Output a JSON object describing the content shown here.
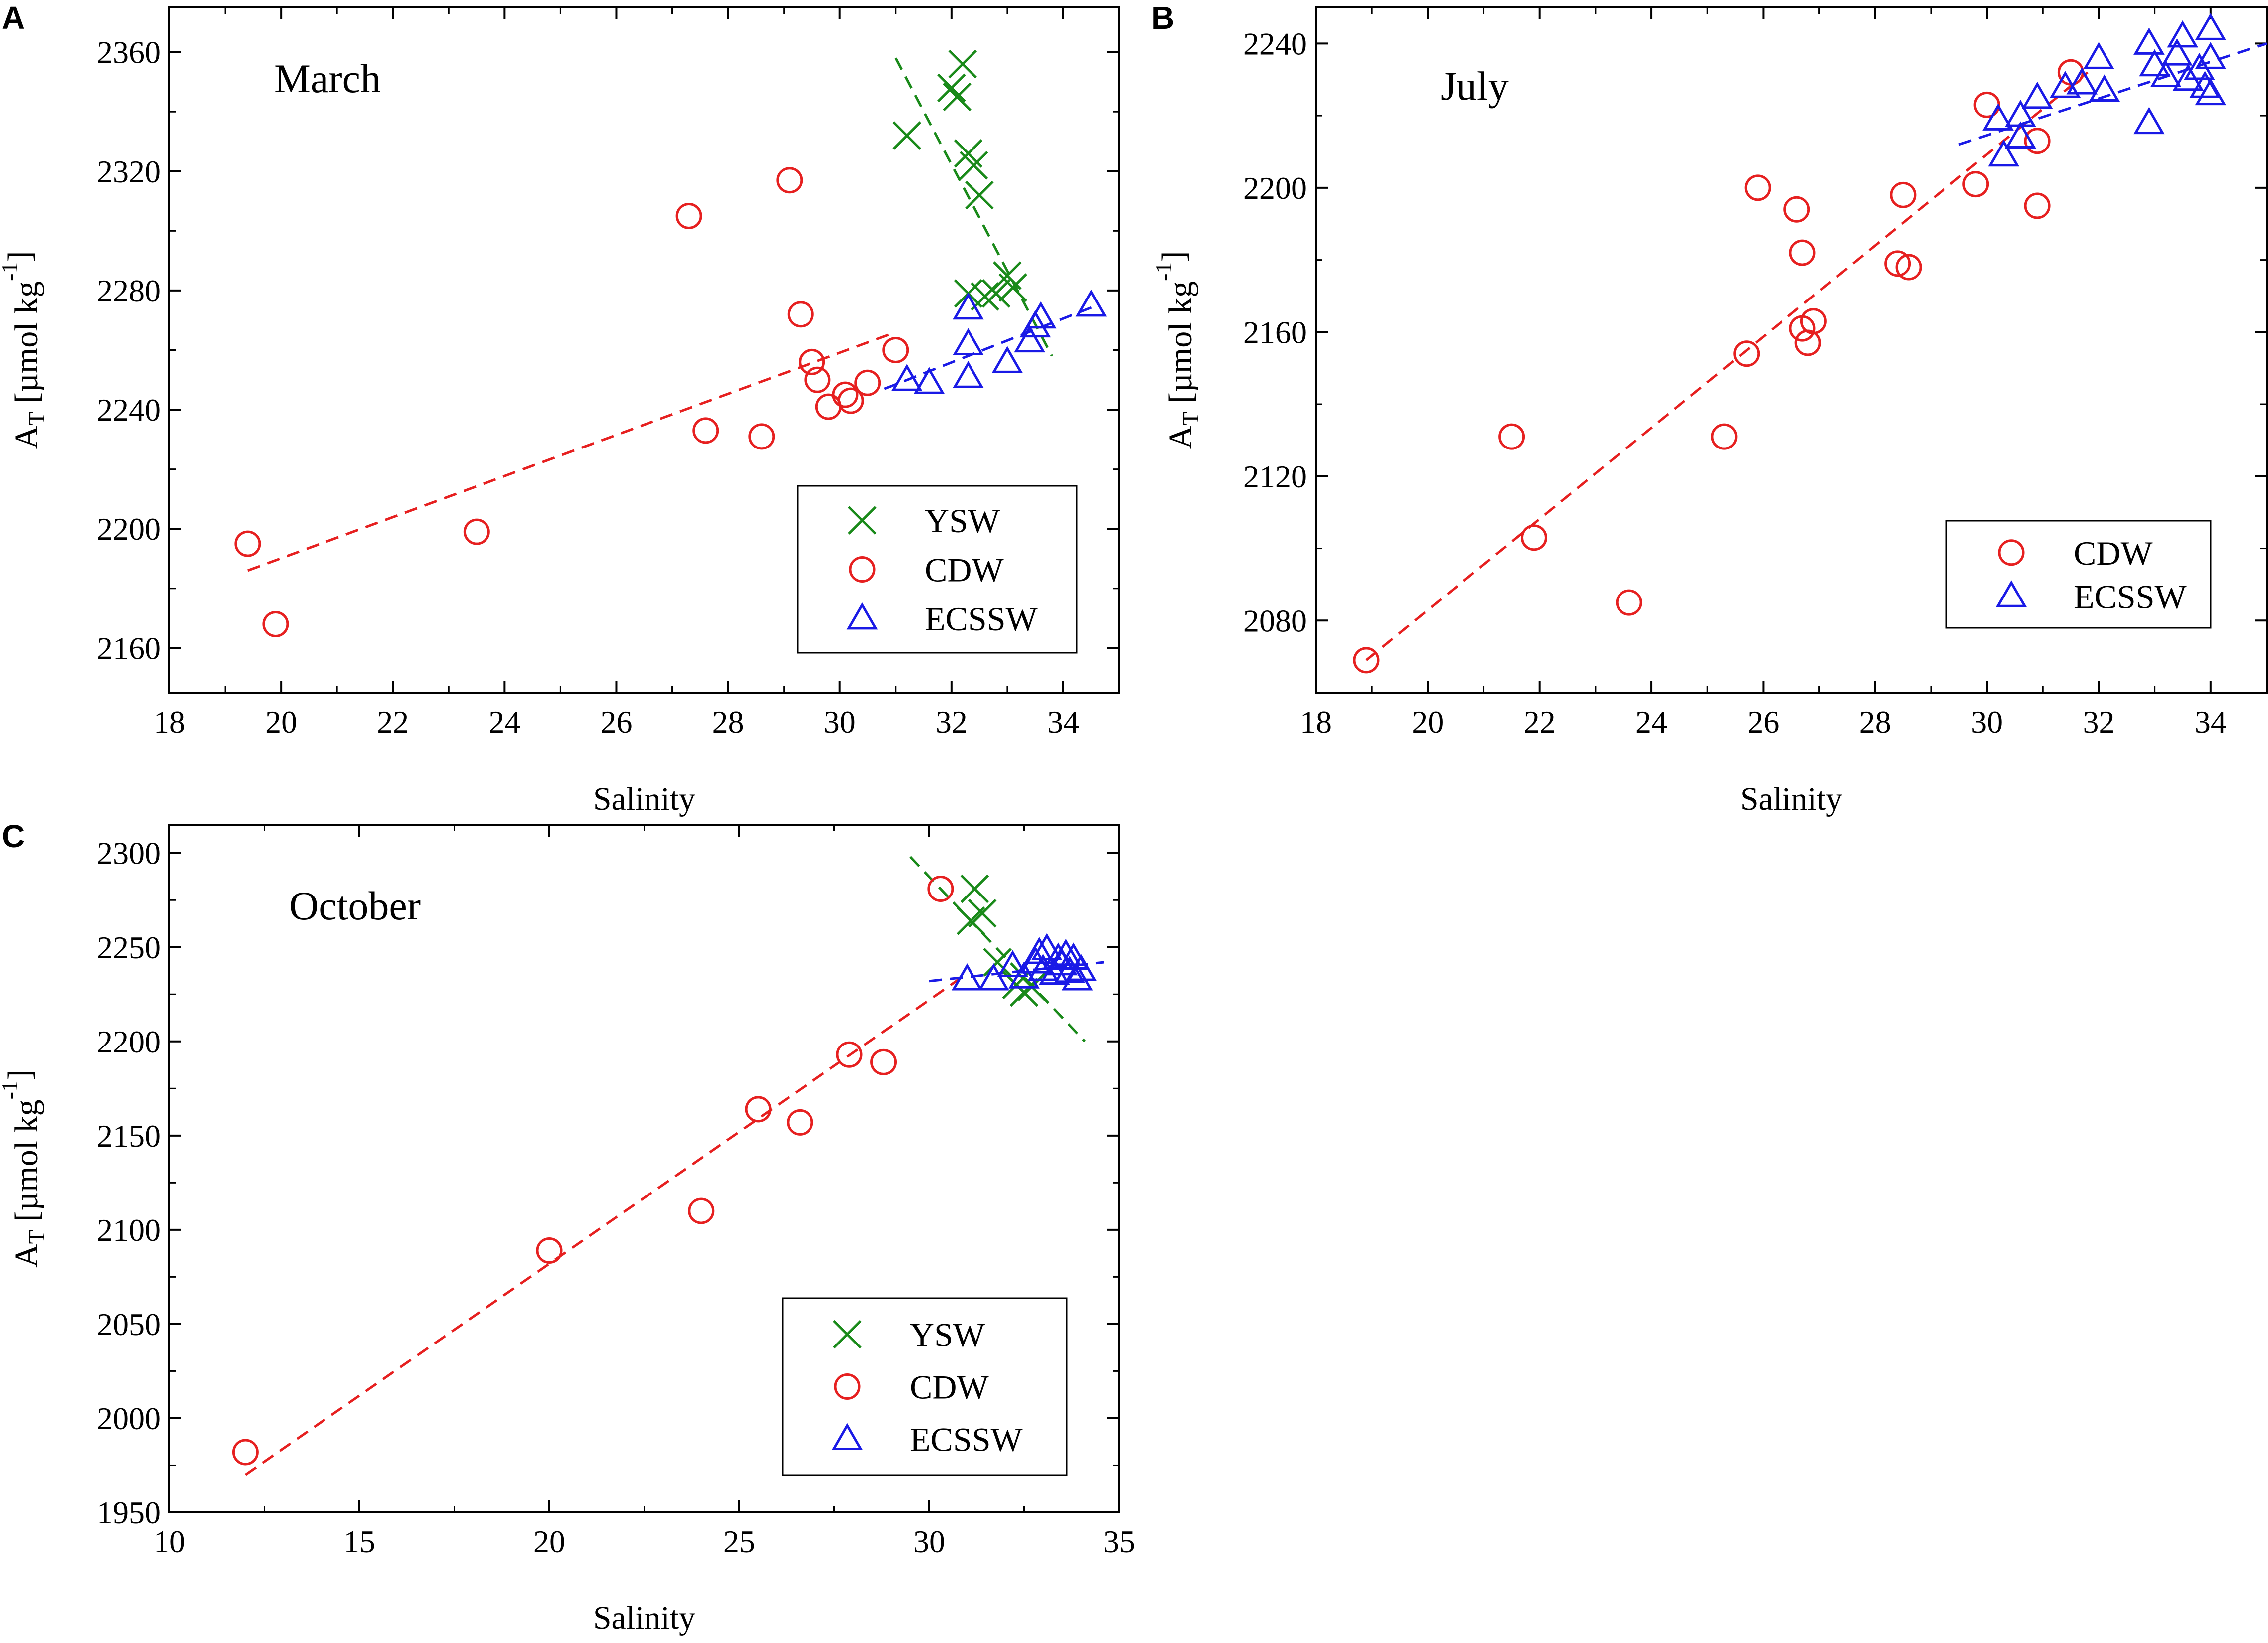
{
  "chart_data": [
    {
      "panel": "A",
      "type": "scatter",
      "title": "March",
      "xlabel": "Salinity",
      "ylabel_main": "A",
      "ylabel_sub": "T",
      "ylabel_unit": " [µmol kg",
      "ylabel_exp": "-1",
      "ylabel_close": "]",
      "xlim": [
        18,
        35
      ],
      "ylim": [
        2145,
        2375
      ],
      "xticks": [
        18,
        20,
        22,
        24,
        26,
        28,
        30,
        32,
        34
      ],
      "yticks": [
        2160,
        2200,
        2240,
        2280,
        2320,
        2360
      ],
      "legend": [
        "YSW",
        "CDW",
        "ECSSW"
      ],
      "series": [
        {
          "name": "YSW",
          "marker": "x",
          "color": "#1a8a1a",
          "x": [
            31.2,
            32.0,
            32.1,
            32.2,
            32.3,
            32.4,
            32.5,
            32.3,
            32.6,
            33.0,
            33.1,
            32.8
          ],
          "y": [
            2332,
            2348,
            2345,
            2356,
            2326,
            2322,
            2312,
            2279,
            2278,
            2285,
            2281,
            2279
          ],
          "fit_x": [
            31.0,
            33.8
          ],
          "fit_y": [
            2358,
            2258
          ]
        },
        {
          "name": "CDW",
          "marker": "circle",
          "color": "#e62020",
          "x": [
            19.4,
            19.9,
            23.5,
            27.3,
            27.6,
            28.6,
            29.1,
            29.3,
            29.5,
            29.6,
            29.8,
            30.1,
            30.2,
            30.5,
            31.0
          ],
          "y": [
            2195,
            2168,
            2199,
            2305,
            2233,
            2231,
            2317,
            2272,
            2256,
            2250,
            2241,
            2245,
            2243,
            2249,
            2260
          ],
          "fit_x": [
            19.4,
            31.0
          ],
          "fit_y": [
            2186,
            2266
          ]
        },
        {
          "name": "ECSSW",
          "marker": "triangle",
          "color": "#1a1ae6",
          "x": [
            31.2,
            31.6,
            32.3,
            32.3,
            32.3,
            33.0,
            33.4,
            33.5,
            33.6,
            34.5
          ],
          "y": [
            2250,
            2249,
            2274,
            2262,
            2251,
            2256,
            2263,
            2268,
            2271,
            2275
          ],
          "fit_x": [
            30.8,
            34.6
          ],
          "fit_y": [
            2247,
            2275
          ]
        }
      ]
    },
    {
      "panel": "B",
      "type": "scatter",
      "title": "July",
      "xlabel": "Salinity",
      "ylabel_main": "A",
      "ylabel_sub": "T",
      "ylabel_unit": " [µmol kg",
      "ylabel_exp": "-1",
      "ylabel_close": "]",
      "xlim": [
        18,
        35
      ],
      "ylim": [
        2060,
        2250
      ],
      "xticks": [
        18,
        20,
        22,
        24,
        26,
        28,
        30,
        32,
        34
      ],
      "yticks": [
        2080,
        2120,
        2160,
        2200,
        2240
      ],
      "legend": [
        "CDW",
        "ECSSW"
      ],
      "series": [
        {
          "name": "CDW",
          "marker": "circle",
          "color": "#e62020",
          "x": [
            18.9,
            21.5,
            21.9,
            23.6,
            25.3,
            25.7,
            25.9,
            26.6,
            26.7,
            26.7,
            26.8,
            26.9,
            28.4,
            28.5,
            28.6,
            29.8,
            30.0,
            30.9,
            30.9,
            31.5
          ],
          "y": [
            2069,
            2131,
            2103,
            2085,
            2131,
            2154,
            2200,
            2194,
            2182,
            2161,
            2157,
            2163,
            2179,
            2198,
            2178,
            2201,
            2223,
            2213,
            2195,
            2232
          ],
          "fit_x": [
            18.9,
            31.8
          ],
          "fit_y": [
            2069,
            2232
          ]
        },
        {
          "name": "ECSSW",
          "marker": "triangle",
          "color": "#1a1ae6",
          "x": [
            30.2,
            30.3,
            30.6,
            30.6,
            30.9,
            31.4,
            31.7,
            32.0,
            32.1,
            32.9,
            32.9,
            33.0,
            33.2,
            33.4,
            33.5,
            33.6,
            33.8,
            33.9,
            34.0,
            34.0,
            34.0
          ],
          "y": [
            2219,
            2209,
            2220,
            2214,
            2225,
            2228,
            2229,
            2236,
            2227,
            2218,
            2240,
            2234,
            2231,
            2237,
            2242,
            2230,
            2233,
            2228,
            2226,
            2236,
            2244
          ],
          "fit_x": [
            29.5,
            35.0
          ],
          "fit_y": [
            2212,
            2240
          ]
        }
      ]
    },
    {
      "panel": "C",
      "type": "scatter",
      "title": "October",
      "xlabel": "Salinity",
      "ylabel_main": "A",
      "ylabel_sub": "T",
      "ylabel_unit": " [µmol kg",
      "ylabel_exp": "-1",
      "ylabel_close": "]",
      "xlim": [
        10,
        35
      ],
      "ylim": [
        1950,
        2315
      ],
      "xticks": [
        10,
        15,
        20,
        25,
        30,
        35
      ],
      "yticks": [
        1950,
        2000,
        2050,
        2100,
        2150,
        2200,
        2250,
        2300
      ],
      "legend": [
        "YSW",
        "CDW",
        "ECSSW"
      ],
      "series": [
        {
          "name": "YSW",
          "marker": "x",
          "color": "#1a8a1a",
          "x": [
            31.2,
            31.1,
            31.4,
            31.8,
            32.3,
            32.5,
            32.7
          ],
          "y": [
            2281,
            2264,
            2268,
            2242,
            2230,
            2226,
            2229
          ],
          "fit_x": [
            29.5,
            34.1
          ],
          "fit_y": [
            2298,
            2200
          ]
        },
        {
          "name": "CDW",
          "marker": "circle",
          "color": "#e62020",
          "x": [
            12.0,
            20.0,
            24.0,
            25.5,
            26.6,
            27.9,
            28.8,
            30.3
          ],
          "y": [
            1982,
            2089,
            2110,
            2164,
            2157,
            2193,
            2189,
            2281
          ],
          "fit_x": [
            12.0,
            31.0
          ],
          "fit_y": [
            1970,
            2236
          ]
        },
        {
          "name": "ECSSW",
          "marker": "triangle",
          "color": "#1a1ae6",
          "x": [
            31.0,
            31.7,
            32.2,
            32.5,
            32.8,
            32.9,
            33.0,
            33.1,
            33.3,
            33.4,
            33.5,
            33.6,
            33.7,
            33.8,
            33.9,
            34.0
          ],
          "y": [
            2233,
            2233,
            2240,
            2234,
            2242,
            2247,
            2238,
            2249,
            2236,
            2244,
            2241,
            2246,
            2237,
            2244,
            2233,
            2238
          ],
          "fit_x": [
            30.0,
            34.6
          ],
          "fit_y": [
            2232,
            2242
          ]
        }
      ]
    }
  ]
}
